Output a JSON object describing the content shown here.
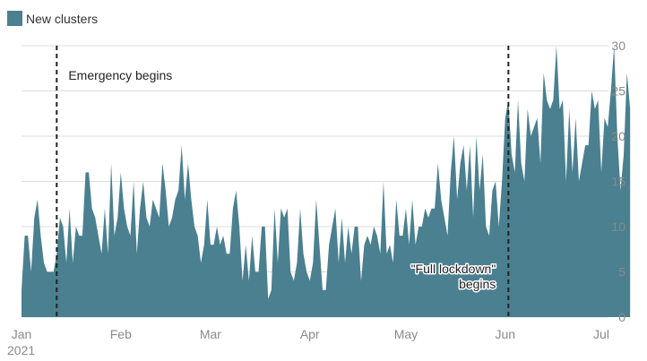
{
  "legend": {
    "label": "New clusters"
  },
  "colors": {
    "area": "#4a8090",
    "grid": "#dddddd",
    "axis_text": "#8a8a8a",
    "annotation": "#222222"
  },
  "chart_data": {
    "type": "area",
    "title": "",
    "xlabel": "",
    "ylabel": "",
    "ylim": [
      0,
      30
    ],
    "yticks": [
      0,
      5,
      10,
      15,
      20,
      25,
      30
    ],
    "y_axis_side": "right",
    "grid": true,
    "legend_position": "top-left",
    "x_start": "2021-01-01",
    "x_end": "2021-06-30",
    "x_tick_labels": [
      "Jan",
      "Feb",
      "Mar",
      "Apr",
      "May",
      "Jun",
      "Jul"
    ],
    "x_tick_dates": [
      "2021-01-01",
      "2021-02-01",
      "2021-03-01",
      "2021-04-01",
      "2021-05-01",
      "2021-06-01",
      "2021-07-01"
    ],
    "x_year_label": "2021",
    "series": [
      {
        "name": "New clusters",
        "values": [
          3,
          9,
          9,
          5,
          11,
          13,
          9,
          6,
          5,
          5,
          5,
          7,
          11,
          10,
          6,
          12,
          6,
          10,
          9,
          9,
          16,
          16,
          12,
          11,
          9,
          7,
          12,
          7,
          17,
          9,
          11,
          16,
          12,
          10,
          9,
          15,
          7,
          12,
          15,
          11,
          10,
          13,
          12,
          11,
          17,
          14,
          10,
          11,
          13,
          14,
          19,
          13,
          17,
          13,
          10,
          9,
          6,
          8,
          13,
          8,
          8,
          10,
          8,
          9,
          7,
          7,
          12,
          14,
          10,
          4,
          8,
          4,
          9,
          5,
          5,
          10,
          10,
          2,
          3,
          12,
          6,
          12,
          11,
          12,
          5,
          4,
          6,
          12,
          7,
          5,
          4,
          6,
          13,
          8,
          3,
          3,
          8,
          10,
          12,
          6,
          11,
          6,
          10,
          7,
          10,
          10,
          4,
          8,
          9,
          8,
          10,
          9,
          7,
          15,
          7,
          8,
          6,
          13,
          9,
          9,
          12,
          8,
          13,
          8,
          10,
          10,
          12,
          11,
          12,
          12,
          17,
          13,
          11,
          9,
          16,
          20,
          13,
          17,
          19,
          14,
          19,
          11,
          20,
          14,
          18,
          10,
          9,
          14,
          15,
          10,
          15,
          22,
          24,
          18,
          16,
          24,
          17,
          15,
          23,
          20,
          21,
          22,
          17,
          27,
          24,
          23,
          24,
          30,
          23,
          24,
          15,
          23,
          16,
          22,
          15,
          17,
          19,
          19,
          25,
          23,
          24,
          16,
          22,
          21,
          25,
          30,
          20,
          14,
          18,
          27,
          23
        ]
      }
    ],
    "annotations": [
      {
        "date": "2021-01-12",
        "text_lines": [
          "Emergency begins"
        ]
      },
      {
        "date": "2021-06-02",
        "text_lines": [
          "\"Full lockdown\"",
          "begins"
        ]
      }
    ]
  }
}
